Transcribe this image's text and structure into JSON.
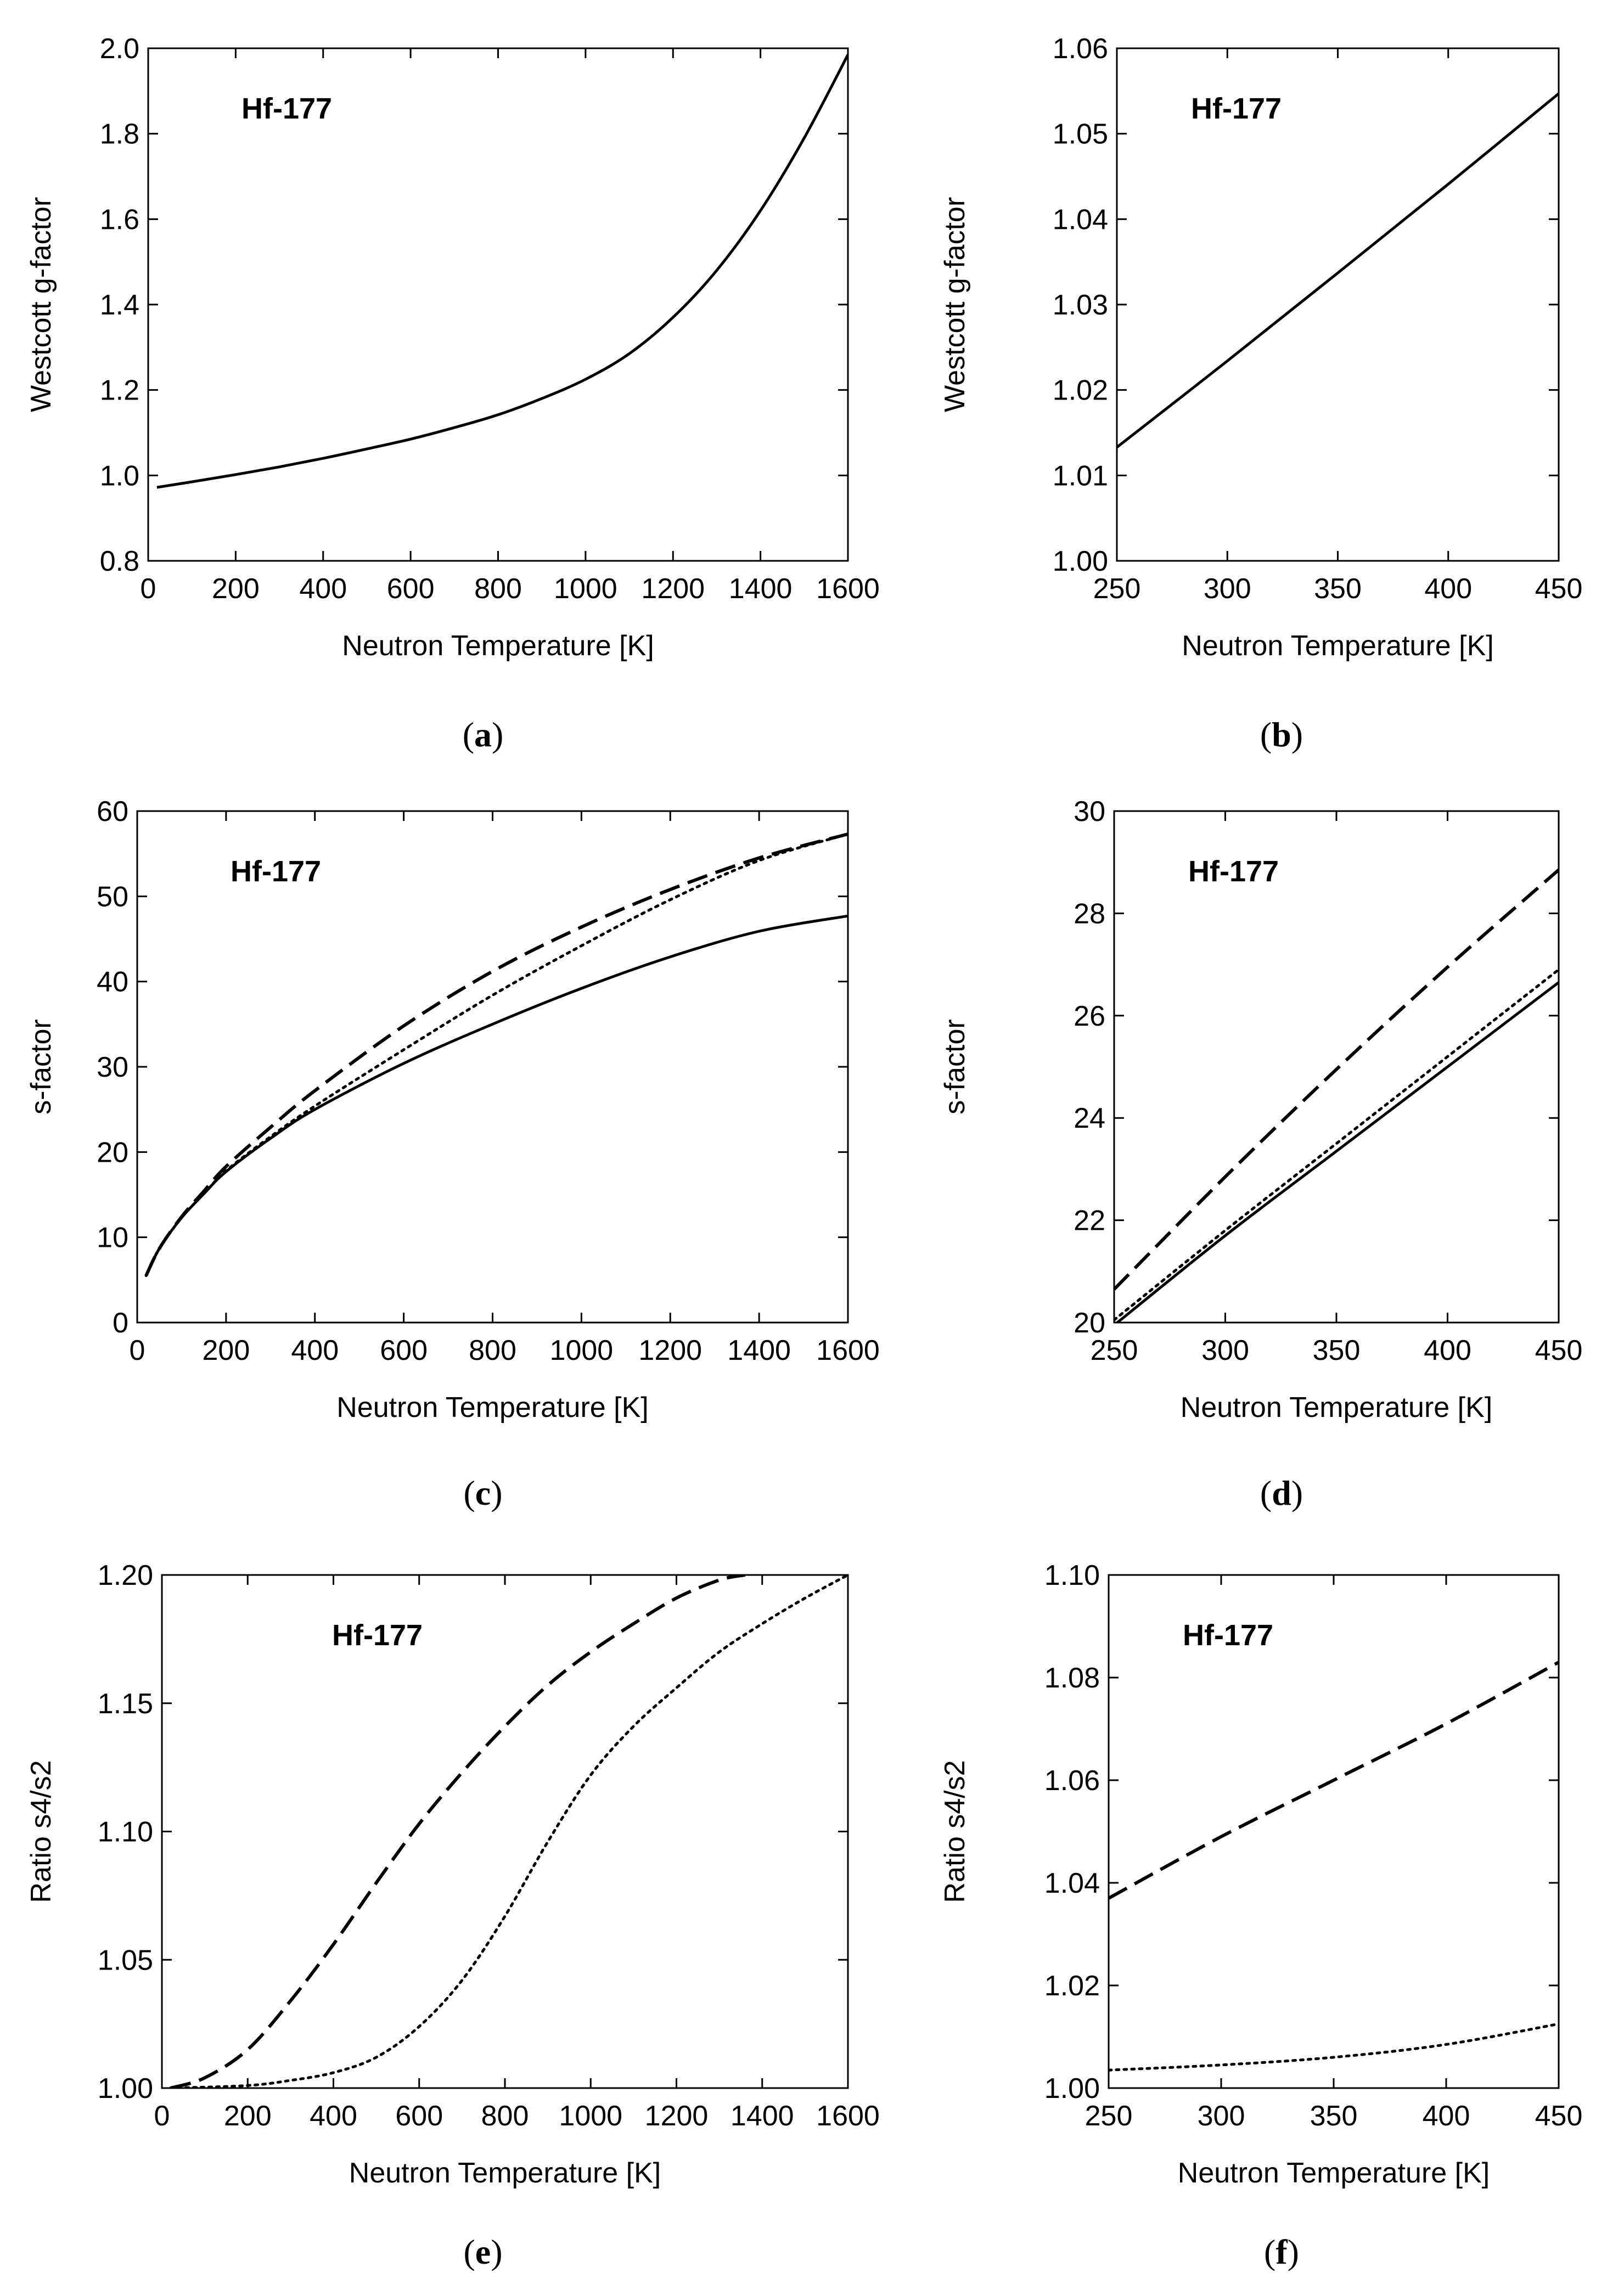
{
  "chart_data": [
    {
      "type": "line",
      "panel_label": "a",
      "annotation": "Hf-177",
      "xlabel": "Neutron Temperature [K]",
      "ylabel": "Westcott g-factor",
      "xlim": [
        0,
        1600
      ],
      "ylim": [
        0.8,
        2.0
      ],
      "xticks": [
        "0",
        "200",
        "400",
        "600",
        "800",
        "1000",
        "1200",
        "1400",
        "1600"
      ],
      "yticks": [
        "0.8",
        "1.0",
        "1.2",
        "1.4",
        "1.6",
        "1.8",
        "2.0"
      ],
      "series": [
        {
          "name": "g-factor",
          "style": "solid",
          "x": [
            20,
            100,
            200,
            300,
            400,
            500,
            600,
            700,
            800,
            900,
            1000,
            1100,
            1200,
            1300,
            1400,
            1500,
            1600
          ],
          "y": [
            0.972,
            0.985,
            1.002,
            1.02,
            1.04,
            1.062,
            1.085,
            1.112,
            1.142,
            1.18,
            1.225,
            1.285,
            1.37,
            1.48,
            1.62,
            1.79,
            1.985
          ]
        }
      ]
    },
    {
      "type": "line",
      "panel_label": "b",
      "annotation": "Hf-177",
      "xlabel": "Neutron Temperature [K]",
      "ylabel": "Westcott g-factor",
      "xlim": [
        250,
        450
      ],
      "ylim": [
        1.0,
        1.06
      ],
      "xticks": [
        "250",
        "300",
        "350",
        "400",
        "450"
      ],
      "yticks": [
        "1.00",
        "1.01",
        "1.02",
        "1.03",
        "1.04",
        "1.05",
        "1.06"
      ],
      "series": [
        {
          "name": "g-factor",
          "style": "solid",
          "x": [
            250,
            300,
            350,
            400,
            450
          ],
          "y": [
            1.0133,
            1.0234,
            1.0337,
            1.0441,
            1.0547
          ]
        }
      ]
    },
    {
      "type": "line",
      "panel_label": "c",
      "annotation": "Hf-177",
      "xlabel": "Neutron Temperature [K]",
      "ylabel": "s-factor",
      "xlim": [
        0,
        1600
      ],
      "ylim": [
        0,
        60
      ],
      "xticks": [
        "0",
        "200",
        "400",
        "600",
        "800",
        "1000",
        "1200",
        "1400",
        "1600"
      ],
      "yticks": [
        "0",
        "10",
        "20",
        "30",
        "40",
        "50",
        "60"
      ],
      "series": [
        {
          "name": "s2",
          "style": "solid",
          "x": [
            20,
            50,
            100,
            150,
            200,
            300,
            400,
            600,
            800,
            1000,
            1200,
            1400,
            1600
          ],
          "y": [
            5.5,
            8.7,
            12.3,
            15.1,
            17.7,
            21.6,
            25.0,
            30.4,
            35.0,
            39.2,
            42.9,
            45.9,
            47.7
          ]
        },
        {
          "name": "s4 (dashed)",
          "style": "dashed",
          "x": [
            20,
            50,
            100,
            150,
            200,
            300,
            400,
            600,
            800,
            1000,
            1200,
            1400,
            1600
          ],
          "y": [
            5.5,
            8.7,
            12.4,
            15.4,
            18.3,
            22.9,
            27.2,
            34.8,
            41.2,
            46.4,
            50.8,
            54.5,
            57.3
          ]
        },
        {
          "name": "s4 (dotted)",
          "style": "dotted",
          "x": [
            20,
            50,
            100,
            150,
            200,
            300,
            400,
            600,
            800,
            1000,
            1200,
            1400,
            1600
          ],
          "y": [
            5.5,
            8.7,
            12.3,
            15.1,
            17.8,
            21.8,
            25.4,
            32.0,
            38.4,
            44.2,
            49.6,
            54.2,
            57.3
          ]
        }
      ]
    },
    {
      "type": "line",
      "panel_label": "d",
      "annotation": "Hf-177",
      "xlabel": "Neutron Temperature [K]",
      "ylabel": "s-factor",
      "xlim": [
        250,
        450
      ],
      "ylim": [
        20,
        30
      ],
      "xticks": [
        "250",
        "300",
        "350",
        "400",
        "450"
      ],
      "yticks": [
        "20",
        "22",
        "24",
        "26",
        "28",
        "30"
      ],
      "series": [
        {
          "name": "s2",
          "style": "solid",
          "x": [
            250,
            300,
            350,
            400,
            450
          ],
          "y": [
            19.95,
            21.7,
            23.35,
            25.0,
            26.65
          ]
        },
        {
          "name": "s4 (dashed)",
          "style": "dashed",
          "x": [
            250,
            300,
            350,
            400,
            450
          ],
          "y": [
            20.65,
            22.85,
            24.95,
            26.95,
            28.85
          ]
        },
        {
          "name": "s4 (dotted)",
          "style": "dotted",
          "x": [
            250,
            300,
            350,
            400,
            450
          ],
          "y": [
            20.05,
            21.8,
            23.5,
            25.2,
            26.9
          ]
        }
      ]
    },
    {
      "type": "line",
      "panel_label": "e",
      "annotation": "Hf-177",
      "xlabel": "Neutron Temperature [K]",
      "ylabel": "Ratio s4/s2",
      "xlim": [
        0,
        1600
      ],
      "ylim": [
        1.0,
        1.2
      ],
      "xticks": [
        "0",
        "200",
        "400",
        "600",
        "800",
        "1000",
        "1200",
        "1400",
        "1600"
      ],
      "yticks": [
        "1.00",
        "1.05",
        "1.10",
        "1.15",
        "1.20"
      ],
      "series": [
        {
          "name": "dashed",
          "style": "dashed",
          "x": [
            20,
            100,
            200,
            300,
            400,
            500,
            600,
            700,
            800,
            900,
            1000,
            1100,
            1200,
            1300,
            1360
          ],
          "y": [
            1.0,
            1.004,
            1.015,
            1.034,
            1.056,
            1.08,
            1.103,
            1.123,
            1.141,
            1.157,
            1.17,
            1.181,
            1.191,
            1.198,
            1.2
          ]
        },
        {
          "name": "dotted",
          "style": "dotted",
          "x": [
            20,
            200,
            300,
            400,
            500,
            600,
            700,
            800,
            900,
            1000,
            1100,
            1200,
            1300,
            1400,
            1500,
            1600
          ],
          "y": [
            1.0,
            1.001,
            1.003,
            1.006,
            1.012,
            1.024,
            1.042,
            1.067,
            1.096,
            1.122,
            1.141,
            1.156,
            1.17,
            1.181,
            1.191,
            1.2
          ]
        }
      ]
    },
    {
      "type": "line",
      "panel_label": "f",
      "annotation": "Hf-177",
      "xlabel": "Neutron Temperature [K]",
      "ylabel": "Ratio s4/s2",
      "xlim": [
        250,
        450
      ],
      "ylim": [
        1.0,
        1.1
      ],
      "xticks": [
        "250",
        "300",
        "350",
        "400",
        "450"
      ],
      "yticks": [
        "1.00",
        "1.02",
        "1.04",
        "1.06",
        "1.08",
        "1.10"
      ],
      "series": [
        {
          "name": "dashed",
          "style": "dashed",
          "x": [
            250,
            300,
            350,
            400,
            450
          ],
          "y": [
            1.037,
            1.049,
            1.06,
            1.071,
            1.083
          ]
        },
        {
          "name": "dotted",
          "style": "dotted",
          "x": [
            250,
            300,
            350,
            400,
            450
          ],
          "y": [
            1.0035,
            1.0045,
            1.006,
            1.0085,
            1.0125
          ]
        }
      ]
    }
  ]
}
